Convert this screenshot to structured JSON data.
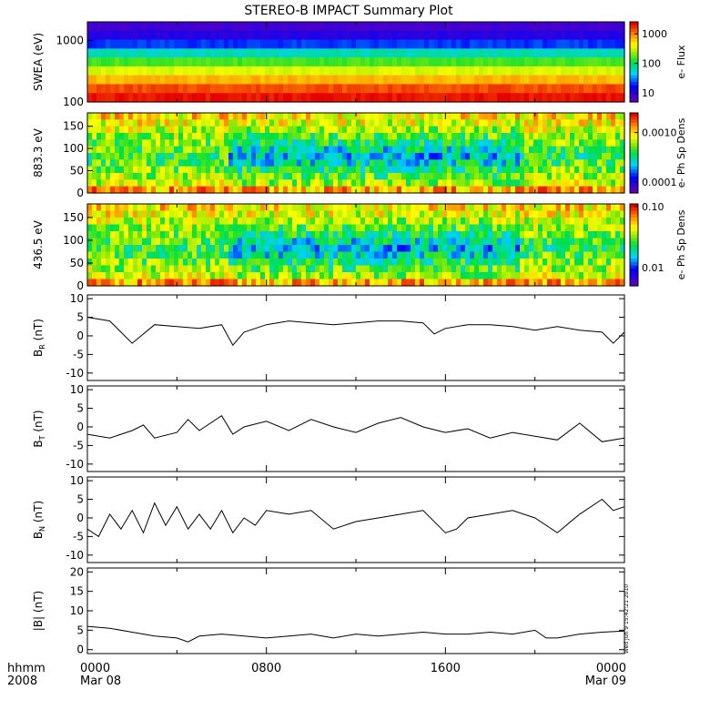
{
  "title": "STEREO-B IMPACT Summary Plot",
  "stamp": "Wed Jun  9 15:42:21 2010",
  "colors": {
    "line": "#000000",
    "background": "#ffffff",
    "frame": "#000000"
  },
  "chart_data": [
    {
      "type": "heatmap",
      "ylabel": "SWEA (eV)",
      "ylim": [
        100,
        2000
      ],
      "yscale": "log",
      "yticks": [
        "100",
        "1000"
      ],
      "colorbar": {
        "label": "e- Flux",
        "scale": "log",
        "ticks": [
          "1000",
          "100",
          "10"
        ],
        "range": [
          5,
          2500
        ]
      },
      "z_profile_by_energy_top_to_bottom": [
        0.05,
        0.1,
        0.22,
        0.4,
        0.55,
        0.68,
        0.8,
        0.92,
        0.98
      ],
      "grid": false
    },
    {
      "type": "heatmap",
      "ylabel": "883.3 eV",
      "ylim": [
        0,
        180
      ],
      "yticks": [
        "0",
        "50",
        "100",
        "150"
      ],
      "colorbar": {
        "label": "e- Ph Sp Dens",
        "scale": "log",
        "ticks": [
          "0.0010",
          "0.0001"
        ],
        "range": [
          6e-05,
          0.0025
        ]
      },
      "grid": false
    },
    {
      "type": "heatmap",
      "ylabel": "436.5 eV",
      "ylim": [
        0,
        180
      ],
      "yticks": [
        "0",
        "50",
        "100",
        "150"
      ],
      "colorbar": {
        "label": "e- Ph Sp Dens",
        "scale": "log",
        "ticks": [
          "0.10",
          "0.01"
        ],
        "range": [
          0.005,
          0.11
        ]
      },
      "grid": false
    },
    {
      "type": "line",
      "ylabel": "B_R (nT)",
      "ylabel_main": "B",
      "ylabel_sub": "R",
      "ylabel_unit": " (nT)",
      "ylim": [
        -12,
        11
      ],
      "yticks": [
        "10",
        "5",
        "0",
        "-5",
        "-10"
      ],
      "x_hours": [
        0,
        1,
        1.5,
        2,
        3,
        4,
        5,
        6,
        6.5,
        7,
        8,
        9,
        10,
        11,
        12,
        13,
        14,
        15,
        15.5,
        16,
        17,
        18,
        19,
        20,
        21,
        22,
        23,
        23.5,
        24
      ],
      "y": [
        5,
        4,
        1,
        -2,
        3,
        2.5,
        2,
        3,
        -2.5,
        1,
        3,
        4,
        3.5,
        3,
        3.5,
        4,
        4,
        3.5,
        0.5,
        2,
        3,
        3,
        2.5,
        1.5,
        2.5,
        1.5,
        1,
        -2,
        1
      ]
    },
    {
      "type": "line",
      "ylabel": "B_T (nT)",
      "ylabel_main": "B",
      "ylabel_sub": "T",
      "ylabel_unit": " (nT)",
      "ylim": [
        -12,
        11
      ],
      "yticks": [
        "10",
        "5",
        "0",
        "-5",
        "-10"
      ],
      "x_hours": [
        0,
        1,
        2,
        2.5,
        3,
        4,
        4.5,
        5,
        6,
        6.5,
        7,
        8,
        9,
        10,
        11,
        12,
        13,
        14,
        15,
        16,
        17,
        18,
        19,
        20,
        21,
        22,
        23,
        24
      ],
      "y": [
        -2,
        -3,
        -1,
        0.5,
        -3,
        -1.5,
        2,
        -1,
        3,
        -2,
        0,
        1.5,
        -1,
        2,
        0,
        -1.5,
        1,
        2.5,
        0,
        -1.5,
        -0.5,
        -3,
        -1.5,
        -2.5,
        -3.5,
        1,
        -4,
        -3
      ]
    },
    {
      "type": "line",
      "ylabel": "B_N (nT)",
      "ylabel_main": "B",
      "ylabel_sub": "N",
      "ylabel_unit": " (nT)",
      "ylim": [
        -12,
        11
      ],
      "yticks": [
        "10",
        "5",
        "0",
        "-5",
        "-10"
      ],
      "x_hours": [
        0,
        0.5,
        1,
        1.5,
        2,
        2.5,
        3,
        3.5,
        4,
        4.5,
        5,
        5.5,
        6,
        6.5,
        7,
        7.5,
        8,
        9,
        10,
        11,
        12,
        13,
        14,
        15,
        16,
        16.5,
        17,
        18,
        19,
        20,
        21,
        22,
        23,
        23.5,
        24
      ],
      "y": [
        -3,
        -5,
        1,
        -3,
        2,
        -4,
        4,
        -2,
        3,
        -3,
        1,
        -3,
        2,
        -4,
        0,
        -2,
        2,
        1,
        2,
        -3,
        -1,
        0,
        1,
        2,
        -4,
        -3,
        0,
        1,
        2,
        0,
        -4,
        1,
        5,
        2,
        3
      ]
    },
    {
      "type": "line",
      "ylabel": "|B| (nT)",
      "ylim": [
        -1,
        21
      ],
      "yticks": [
        "20",
        "15",
        "10",
        "5",
        "0"
      ],
      "x_hours": [
        0,
        1,
        2,
        3,
        4,
        4.5,
        5,
        6,
        7,
        8,
        9,
        10,
        11,
        12,
        13,
        14,
        15,
        16,
        17,
        18,
        19,
        20,
        20.5,
        21,
        22,
        23,
        24
      ],
      "y": [
        6,
        5.5,
        4.5,
        3.5,
        3,
        2,
        3.5,
        4,
        3.5,
        3,
        3.5,
        4,
        3,
        4,
        3.5,
        4,
        4.5,
        4,
        4,
        4.5,
        4,
        5,
        3,
        3,
        4,
        4.5,
        4.8
      ]
    }
  ],
  "x_axis": {
    "row_label": "hhmm",
    "year": "2008",
    "ticks": [
      {
        "hour": 0,
        "time": "0000",
        "date": "Mar 08"
      },
      {
        "hour": 8,
        "time": "0800",
        "date": ""
      },
      {
        "hour": 16,
        "time": "1600",
        "date": ""
      },
      {
        "hour": 24,
        "time": "0000",
        "date": "Mar 09"
      }
    ]
  }
}
